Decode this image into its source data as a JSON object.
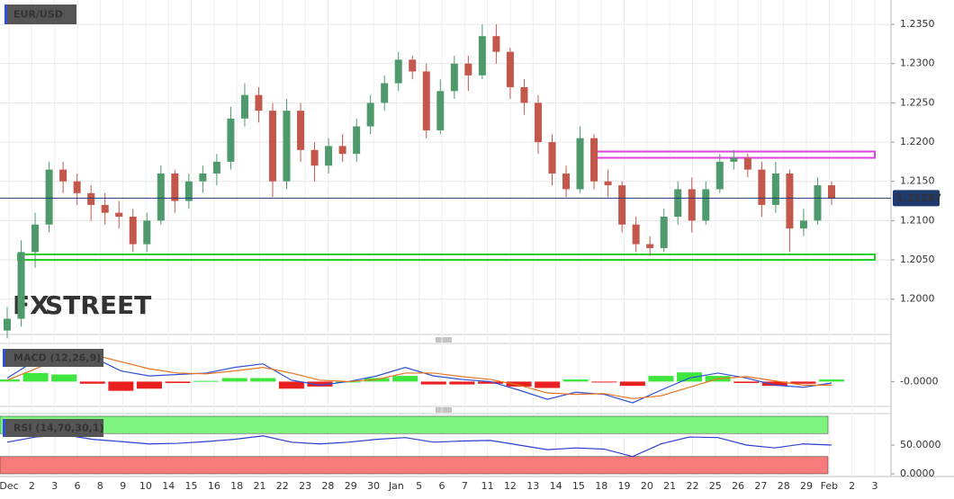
{
  "chart_data": [
    {
      "type": "candlestick",
      "title": "EUR/USD",
      "watermark": [
        "FX",
        "STREET"
      ],
      "x_axis_labels": [
        "Dec",
        "2",
        "3",
        "6",
        "8",
        "9",
        "10",
        "14",
        "15",
        "16",
        "18",
        "21",
        "22",
        "23",
        "28",
        "29",
        "30",
        "Jan",
        "5",
        "6",
        "7",
        "11",
        "12",
        "13",
        "14",
        "15",
        "18",
        "19",
        "20",
        "21",
        "22",
        "25",
        "26",
        "27",
        "28",
        "29",
        "Feb",
        "2",
        "3"
      ],
      "up_color": "#4e9a6c",
      "down_color": "#c4574c",
      "open": [
        1.196,
        1.1975,
        1.206,
        1.2095,
        1.2165,
        1.215,
        1.2135,
        1.212,
        1.211,
        1.2105,
        1.207,
        1.21,
        1.216,
        1.2125,
        1.215,
        1.216,
        1.2175,
        1.223,
        1.226,
        1.224,
        1.215,
        1.224,
        1.219,
        1.217,
        1.2195,
        1.2185,
        1.222,
        1.225,
        1.2275,
        1.2305,
        1.229,
        1.2215,
        1.2265,
        1.23,
        1.2285,
        1.2335,
        1.2315,
        1.227,
        1.225,
        1.22,
        1.216,
        1.214,
        1.2205,
        1.215,
        1.2145,
        1.2095,
        1.207,
        1.2065,
        1.2105,
        1.214,
        1.21,
        1.214,
        1.2175,
        1.218,
        1.2165,
        1.212,
        1.216,
        1.209,
        1.21,
        1.2145
      ],
      "high": [
        1.199,
        1.2075,
        1.211,
        1.2175,
        1.2175,
        1.216,
        1.2145,
        1.2135,
        1.2125,
        1.2115,
        1.211,
        1.217,
        1.2165,
        1.216,
        1.217,
        1.2185,
        1.2245,
        1.2275,
        1.227,
        1.225,
        1.2255,
        1.225,
        1.22,
        1.2205,
        1.221,
        1.223,
        1.226,
        1.2285,
        1.2315,
        1.231,
        1.23,
        1.228,
        1.231,
        1.231,
        1.235,
        1.235,
        1.232,
        1.228,
        1.226,
        1.221,
        1.217,
        1.222,
        1.221,
        1.2165,
        1.215,
        1.2105,
        1.208,
        1.2115,
        1.215,
        1.2155,
        1.215,
        1.2185,
        1.219,
        1.2185,
        1.2175,
        1.2175,
        1.2165,
        1.2115,
        1.2155,
        1.215
      ],
      "low": [
        1.195,
        1.1965,
        1.204,
        1.2085,
        1.2135,
        1.212,
        1.21,
        1.2095,
        1.209,
        1.206,
        1.206,
        1.2095,
        1.211,
        1.2115,
        1.2135,
        1.2145,
        1.2165,
        1.222,
        1.2225,
        1.213,
        1.214,
        1.2175,
        1.215,
        1.216,
        1.2175,
        1.2175,
        1.221,
        1.224,
        1.2265,
        1.228,
        1.2205,
        1.221,
        1.2255,
        1.2265,
        1.228,
        1.23,
        1.2255,
        1.2235,
        1.2185,
        1.2145,
        1.213,
        1.2135,
        1.214,
        1.213,
        1.2085,
        1.206,
        1.2055,
        1.206,
        1.2095,
        1.2085,
        1.2095,
        1.2135,
        1.2165,
        1.2155,
        1.2105,
        1.211,
        1.206,
        1.208,
        1.2095,
        1.212
      ],
      "close": [
        1.1975,
        1.206,
        1.2095,
        1.2165,
        1.215,
        1.2135,
        1.212,
        1.211,
        1.2105,
        1.207,
        1.21,
        1.216,
        1.2125,
        1.215,
        1.216,
        1.2175,
        1.223,
        1.226,
        1.224,
        1.215,
        1.224,
        1.219,
        1.217,
        1.2195,
        1.2185,
        1.222,
        1.225,
        1.2275,
        1.2305,
        1.229,
        1.2215,
        1.2265,
        1.23,
        1.2285,
        1.2335,
        1.2315,
        1.227,
        1.225,
        1.22,
        1.216,
        1.214,
        1.2205,
        1.215,
        1.2145,
        1.2095,
        1.207,
        1.2065,
        1.2105,
        1.214,
        1.21,
        1.214,
        1.2175,
        1.218,
        1.2165,
        1.212,
        1.216,
        1.209,
        1.21,
        1.2145,
        1.2128
      ],
      "last_price": 1.21287,
      "last_price_color": "#1f3a6e",
      "zones": [
        {
          "color": "#e040e0",
          "range": [
            1.218,
            1.2188
          ]
        },
        {
          "color": "#22cc22",
          "range": [
            1.205,
            1.2057
          ]
        }
      ],
      "ylim": [
        1.1955,
        1.2381
      ],
      "yticks": [
        {
          "value": 1.2,
          "label": "1.2000"
        },
        {
          "value": 1.205,
          "label": "1.2050"
        },
        {
          "value": 1.21,
          "label": "1.2100"
        },
        {
          "value": 1.215,
          "label": "1.2150"
        },
        {
          "value": 1.22,
          "label": "1.2200"
        },
        {
          "value": 1.225,
          "label": "1.2250"
        },
        {
          "value": 1.23,
          "label": "1.2300"
        },
        {
          "value": 1.235,
          "label": "1.2350"
        }
      ],
      "grid": true
    },
    {
      "type": "macd",
      "title": "MACD (12,26,9)",
      "series": [
        {
          "color": "#2f4fd8",
          "values": [
            0.0005,
            0.003,
            0.0045,
            0.0035,
            0.0015,
            0.0008,
            0.001,
            0.0012,
            0.002,
            0.0025,
            0.0002,
            -0.0005,
            0.0,
            0.0008,
            0.002,
            0.0008,
            0.0003,
            0.0,
            -0.0012,
            -0.0025,
            -0.0015,
            -0.0018,
            -0.003,
            -0.0012,
            0.0005,
            0.0012,
            0.0005,
            -0.0005,
            -0.0008,
            -0.0002
          ]
        },
        {
          "color": "#e8731f",
          "values": [
            0.0002,
            0.0018,
            0.0035,
            0.0038,
            0.0028,
            0.0018,
            0.0012,
            0.0011,
            0.0015,
            0.002,
            0.0012,
            0.0002,
            0.0,
            0.0003,
            0.0012,
            0.0012,
            0.0007,
            0.0003,
            -0.0005,
            -0.0016,
            -0.0018,
            -0.0017,
            -0.0024,
            -0.002,
            -0.0008,
            0.0004,
            0.0007,
            0.0001,
            -0.0005,
            -0.0005
          ]
        }
      ],
      "histogram": [
        0.0003,
        0.0012,
        0.001,
        -0.0003,
        -0.0013,
        -0.001,
        -0.0002,
        0.0001,
        0.0005,
        0.0005,
        -0.001,
        -0.0007,
        0.0,
        0.0005,
        0.0008,
        -0.0004,
        -0.0004,
        -0.0003,
        -0.0007,
        -0.0009,
        0.0003,
        -0.0001,
        -0.0006,
        0.0008,
        0.0013,
        0.0008,
        -0.0002,
        -0.0006,
        -0.0003,
        0.0003
      ],
      "histogram_colors": [
        "#3ee63e",
        "#e82020"
      ],
      "ylim": [
        -0.0035,
        0.005
      ],
      "yticks": [
        {
          "value": 0,
          "label": "-0.0000"
        }
      ]
    },
    {
      "type": "line",
      "title": "RSI (14,70,30,1)",
      "series": [
        {
          "color": "#2a3fd0",
          "values": [
            55,
            64,
            68,
            60,
            56,
            52,
            53,
            56,
            60,
            66,
            55,
            52,
            55,
            60,
            63,
            55,
            57,
            58,
            50,
            42,
            45,
            43,
            30,
            52,
            64,
            63,
            50,
            45,
            52,
            50
          ]
        }
      ],
      "overbought": 70,
      "oversold": 30,
      "band_colors": [
        "#7ef47e",
        "#f77b7b"
      ],
      "ylim": [
        0,
        100
      ],
      "yticks": [
        {
          "value": 50,
          "label": "50.0000"
        },
        {
          "value": 0,
          "label": "0.0000"
        }
      ]
    }
  ]
}
